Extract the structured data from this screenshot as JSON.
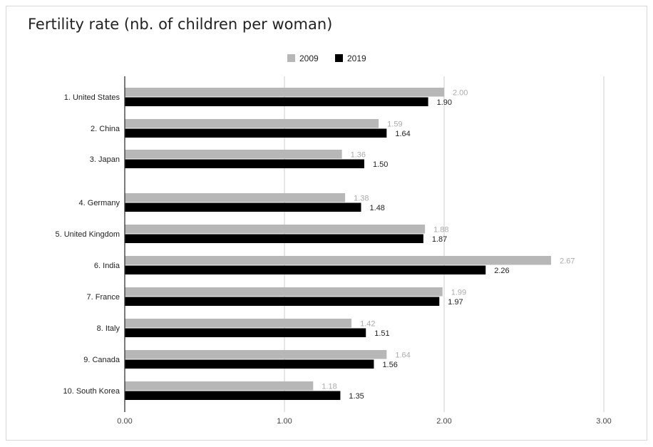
{
  "chart_data": {
    "type": "bar",
    "orientation": "horizontal",
    "title": "Fertility rate (nb. of children per woman)",
    "categories": [
      "1. United States",
      "2. China",
      "3. Japan",
      "4. Germany",
      "5. United Kingdom",
      "6. India",
      "7. France",
      "8. Italy",
      "9. Canada",
      "10. South Korea"
    ],
    "series": [
      {
        "name": "2009",
        "color": "#b7b7b7",
        "label_color": "#aaaaaa",
        "values": [
          2.0,
          1.59,
          1.36,
          1.38,
          1.88,
          2.67,
          1.99,
          1.42,
          1.64,
          1.18
        ],
        "labels": [
          "2.00",
          "1.59",
          "1.36",
          "1.38",
          "1.88",
          "2.67",
          "1.99",
          "1.42",
          "1.64",
          "1.18"
        ]
      },
      {
        "name": "2019",
        "color": "#000000",
        "label_color": "#222222",
        "values": [
          1.9,
          1.64,
          1.5,
          1.48,
          1.87,
          2.26,
          1.97,
          1.51,
          1.56,
          1.35
        ],
        "labels": [
          "1.90",
          "1.64",
          "1.50",
          "1.48",
          "1.87",
          "2.26",
          "1.97",
          "1.51",
          "1.56",
          "1.35"
        ]
      }
    ],
    "xlim": [
      0,
      3
    ],
    "xticks": [
      "0.00",
      "1.00",
      "2.00",
      "3.00"
    ],
    "grid": true,
    "legend": "top"
  }
}
